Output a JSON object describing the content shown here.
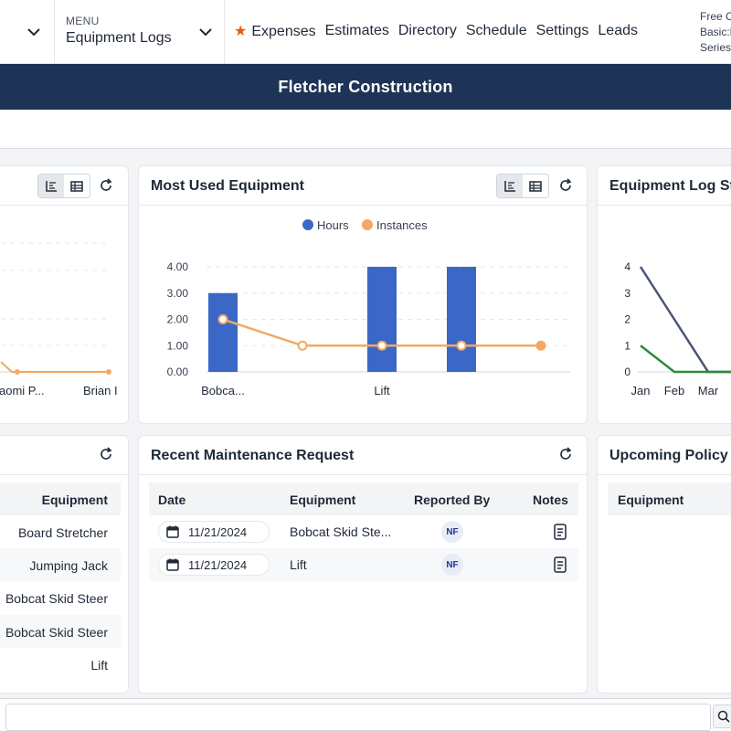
{
  "nav": {
    "menu_caption": "MENU",
    "menu_title": "Equipment Logs",
    "links": [
      "Expenses",
      "Estimates",
      "Directory",
      "Schedule",
      "Settings",
      "Leads"
    ],
    "plan_lines": [
      "Free C",
      "Basic:E",
      "Series"
    ]
  },
  "banner": {
    "title": "Fletcher Construction"
  },
  "colors": {
    "banner": "#1e3456",
    "hours": "#3b68c6",
    "instances": "#f4a862",
    "star": "#ea580c"
  },
  "cards": {
    "left_chart": {
      "x_labels": [
        "aomi P...",
        "Brian I"
      ]
    },
    "most_used": {
      "title": "Most Used Equipment"
    },
    "log_stats": {
      "title": "Equipment Log St",
      "x_labels": [
        "Jan",
        "Feb",
        "Mar"
      ],
      "y_labels": [
        "4",
        "3",
        "2",
        "1",
        "0"
      ]
    },
    "left_table": {
      "header": "Equipment",
      "rows": [
        "Board Stretcher",
        "Jumping Jack",
        "Bobcat Skid Steer",
        "Bobcat Skid Steer",
        "Lift"
      ]
    },
    "maintenance": {
      "title": "Recent Maintenance Request",
      "headers": {
        "date": "Date",
        "equipment": "Equipment",
        "reported_by": "Reported By",
        "notes": "Notes"
      },
      "rows": [
        {
          "date": "11/21/2024",
          "equipment": "Bobcat Skid Ste...",
          "reported_by": "NF"
        },
        {
          "date": "11/21/2024",
          "equipment": "Lift",
          "reported_by": "NF"
        }
      ]
    },
    "policy": {
      "title": "Upcoming Policy I",
      "header": "Equipment"
    }
  },
  "chart_data": [
    {
      "type": "bar",
      "title": "Most Used Equipment",
      "legend": [
        "Hours",
        "Instances"
      ],
      "legend_position": "top",
      "categories": [
        "Bobca...",
        "",
        "Lift",
        "",
        ""
      ],
      "series": [
        {
          "name": "Hours",
          "type": "bar",
          "values": [
            3,
            0,
            4,
            4,
            0
          ]
        },
        {
          "name": "Instances",
          "type": "line",
          "values": [
            2,
            1,
            1,
            1,
            1
          ]
        }
      ],
      "y_ticks": [
        "4.00",
        "3.00",
        "2.00",
        "1.00",
        "0.00"
      ],
      "ylim": [
        0,
        4
      ],
      "grid": true
    },
    {
      "type": "line",
      "title": "Equipment Log St",
      "categories": [
        "Jan",
        "Feb",
        "Mar"
      ],
      "series": [
        {
          "values": [
            4,
            2,
            0
          ],
          "color": "#4b5478"
        },
        {
          "values": [
            1,
            0,
            0
          ],
          "color": "#2e8b3a"
        }
      ],
      "ylim": [
        0,
        4
      ]
    }
  ]
}
